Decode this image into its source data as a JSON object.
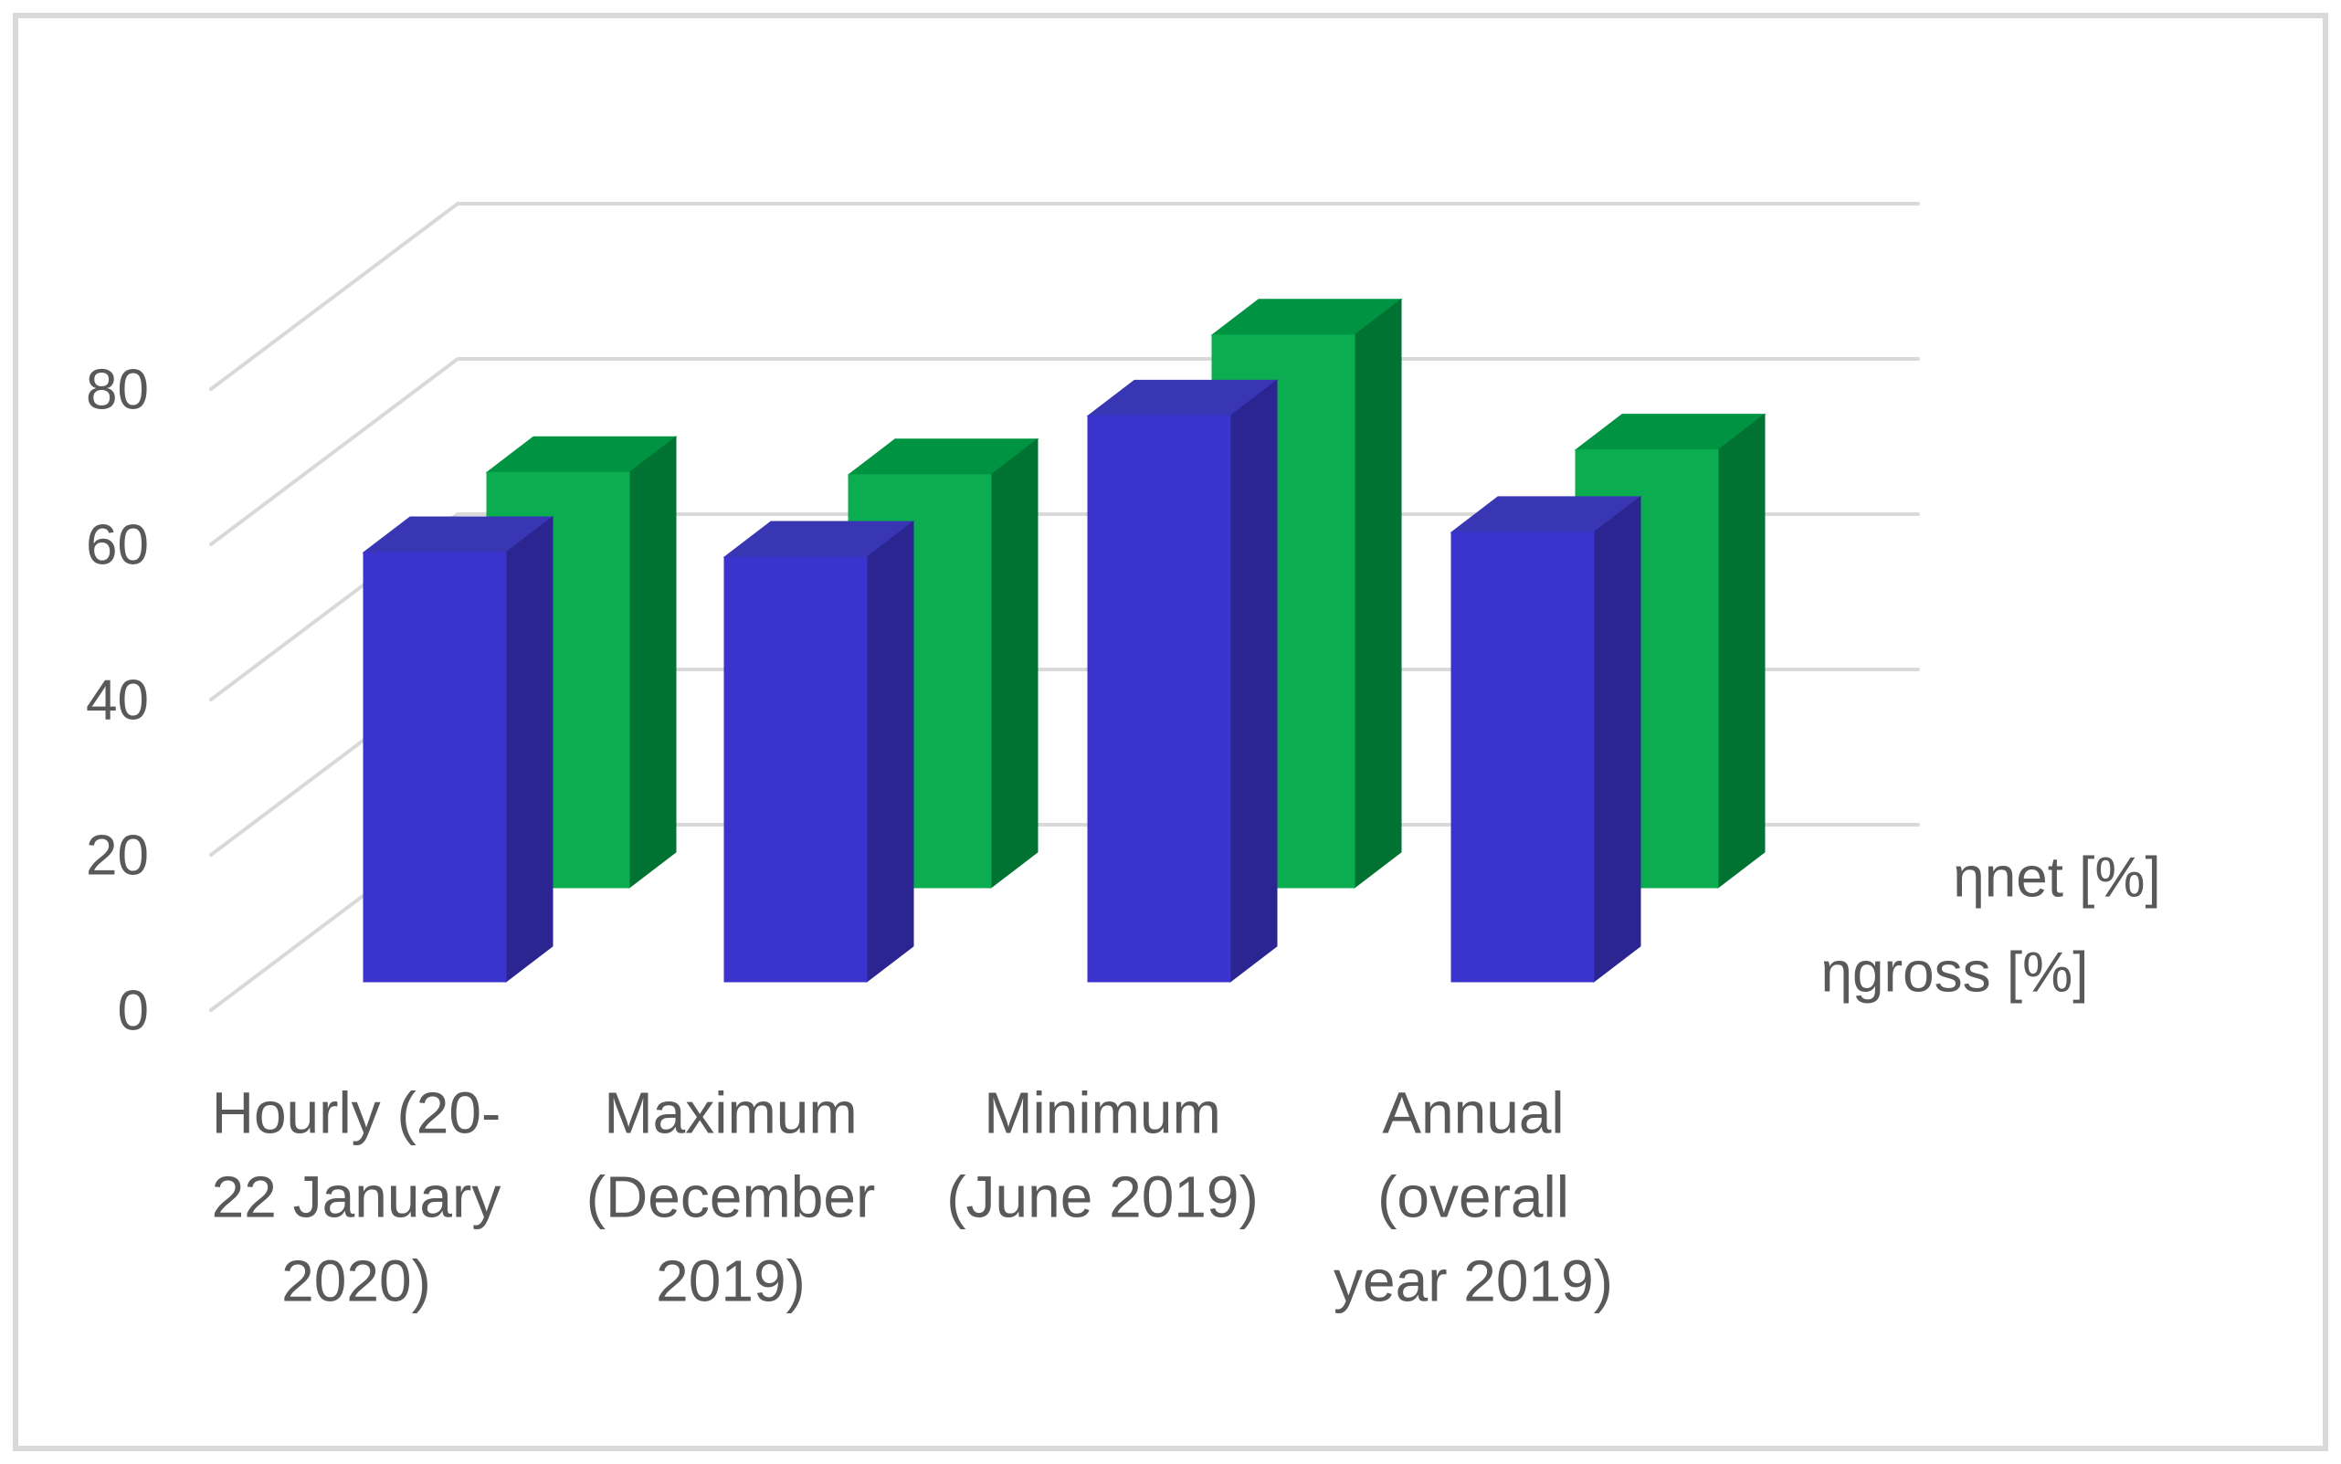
{
  "figure": {
    "background": "#FFFFFF",
    "border_color": "#D9D9D9",
    "gridline_color": "#D9D9D9",
    "text_color": "#595959"
  },
  "chart_data": {
    "type": "bar",
    "projection": "3d",
    "title": "",
    "categories": [
      "Hourly (20-22 January 2020)",
      "Maximum (December 2019)",
      "Minimum (June 2019)",
      "Annual (overall year 2019)"
    ],
    "category_label_lines": [
      [
        "Hourly (20-",
        "22 January",
        "2020)"
      ],
      [
        "Maximum",
        "(December",
        "2019)"
      ],
      [
        "Minimum",
        "(June 2019)"
      ],
      [
        "Annual",
        "(overall",
        "year 2019)"
      ]
    ],
    "series": [
      {
        "name": "ηgross [%]",
        "row": "front",
        "color": "#3A33CE",
        "color_top": "#3936B4",
        "color_side": "#2A2590",
        "values": [
          55.3,
          54.7,
          72.9,
          57.9
        ]
      },
      {
        "name": "ηnet [%]",
        "row": "back",
        "color": "#0CAC50",
        "color_top": "#009442",
        "color_side": "#007333",
        "values": [
          53.5,
          53.2,
          71.2,
          56.4
        ]
      }
    ],
    "value_axis": {
      "ticks": [
        0,
        20,
        40,
        60,
        80
      ],
      "min": 0,
      "max": 100,
      "unit": "%"
    },
    "legend_position": "depth-axis-right",
    "grid": true
  }
}
